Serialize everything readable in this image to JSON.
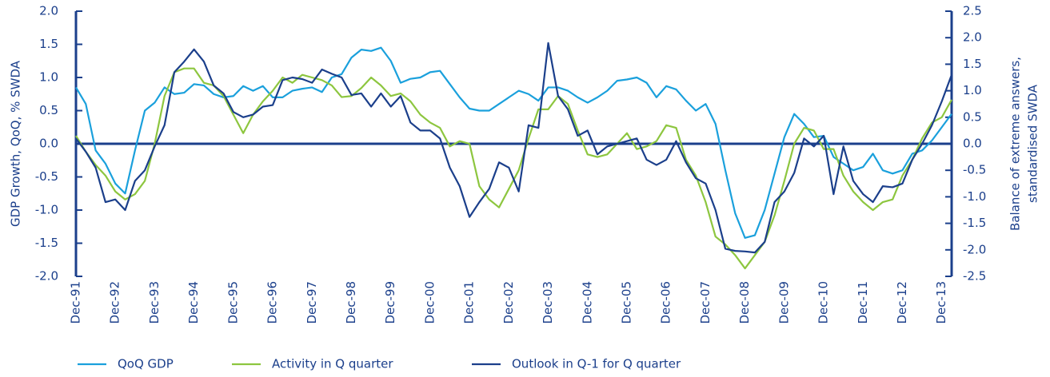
{
  "chart_data": {
    "type": "line",
    "y_label": "GDP Growth, QoQ, % SWDA",
    "y2_label": [
      "Balance of extreme answers,",
      "standardised SWDA"
    ],
    "categories": [
      "Dec-91",
      null,
      null,
      null,
      "Dec-92",
      null,
      null,
      null,
      "Dec-93",
      null,
      null,
      null,
      "Dec-94",
      null,
      null,
      null,
      "Dec-95",
      null,
      null,
      null,
      "Dec-96",
      null,
      null,
      null,
      "Dec-97",
      null,
      null,
      null,
      "Dec-98",
      null,
      null,
      null,
      "Dec-99",
      null,
      null,
      null,
      "Dec-00",
      null,
      null,
      null,
      "Dec-01",
      null,
      null,
      null,
      "Dec-02",
      null,
      null,
      null,
      "Dec-03",
      null,
      null,
      null,
      "Dec-04",
      null,
      null,
      null,
      "Dec-05",
      null,
      null,
      null,
      "Dec-06",
      null,
      null,
      null,
      "Dec-07",
      null,
      null,
      null,
      "Dec-08",
      null,
      null,
      null,
      "Dec-09",
      null,
      null,
      null,
      "Dec-10",
      null,
      null,
      null,
      "Dec-11",
      null,
      null,
      null,
      "Dec-12",
      null,
      null,
      null,
      "Dec-13",
      null
    ],
    "series": [
      {
        "name": "QoQ GDP",
        "color": "#1aa0dc",
        "values": [
          0.85,
          0.6,
          -0.1,
          -0.3,
          -0.6,
          -0.75,
          -0.1,
          0.5,
          0.62,
          0.85,
          0.75,
          0.77,
          0.9,
          0.88,
          0.75,
          0.7,
          0.72,
          0.87,
          0.8,
          0.87,
          0.7,
          0.7,
          0.8,
          0.83,
          0.85,
          0.78,
          1.0,
          1.05,
          1.3,
          1.42,
          1.4,
          1.45,
          1.25,
          0.92,
          0.98,
          1.0,
          1.08,
          1.1,
          0.9,
          0.7,
          0.53,
          0.5,
          0.5,
          0.6,
          0.7,
          0.8,
          0.75,
          0.65,
          0.85,
          0.85,
          0.8,
          0.7,
          0.62,
          0.7,
          0.8,
          0.95,
          0.97,
          1.0,
          0.92,
          0.7,
          0.87,
          0.82,
          0.65,
          0.5,
          0.6,
          0.3,
          -0.4,
          -1.05,
          -1.42,
          -1.38,
          -1.0,
          -0.45,
          0.1,
          0.45,
          0.3,
          0.1,
          0.12,
          -0.2,
          -0.3,
          -0.4,
          -0.35,
          -0.15,
          -0.4,
          -0.45,
          -0.4,
          -0.15,
          -0.1,
          0.05,
          0.25,
          0.45
        ]
      },
      {
        "name": "Activity in Q quarter",
        "color": "#8dc63f",
        "axis": "y2",
        "values": [
          0.15,
          -0.15,
          -0.4,
          -0.6,
          -0.9,
          -1.05,
          -0.95,
          -0.7,
          0.0,
          0.9,
          1.35,
          1.42,
          1.42,
          1.15,
          1.1,
          0.9,
          0.55,
          0.2,
          0.55,
          0.8,
          1.0,
          1.25,
          1.15,
          1.3,
          1.25,
          1.2,
          1.1,
          0.88,
          0.9,
          1.05,
          1.25,
          1.1,
          0.9,
          0.95,
          0.8,
          0.55,
          0.4,
          0.3,
          -0.05,
          0.05,
          0.0,
          -0.8,
          -1.05,
          -1.2,
          -0.85,
          -0.5,
          0.1,
          0.65,
          0.65,
          0.9,
          0.75,
          0.25,
          -0.2,
          -0.25,
          -0.2,
          0.0,
          0.2,
          -0.1,
          -0.05,
          0.05,
          0.35,
          0.3,
          -0.3,
          -0.6,
          -1.1,
          -1.75,
          -1.9,
          -2.1,
          -2.35,
          -2.1,
          -1.85,
          -1.35,
          -0.7,
          0.0,
          0.3,
          0.25,
          -0.1,
          -0.1,
          -0.6,
          -0.9,
          -1.1,
          -1.25,
          -1.1,
          -1.05,
          -0.6,
          -0.3,
          0.1,
          0.4,
          0.5,
          0.83
        ]
      },
      {
        "name": "Outlook in Q-1 for Q quarter",
        "color": "#1b3f8b",
        "axis": "y2",
        "values": [
          0.1,
          -0.15,
          -0.45,
          -1.1,
          -1.05,
          -1.25,
          -0.7,
          -0.5,
          -0.05,
          0.35,
          1.35,
          1.55,
          1.78,
          1.55,
          1.1,
          0.95,
          0.6,
          0.5,
          0.55,
          0.7,
          0.73,
          1.2,
          1.25,
          1.22,
          1.15,
          1.4,
          1.32,
          1.25,
          0.92,
          0.95,
          0.7,
          0.95,
          0.7,
          0.9,
          0.4,
          0.25,
          0.25,
          0.1,
          -0.45,
          -0.8,
          -1.38,
          -1.1,
          -0.85,
          -0.35,
          -0.45,
          -0.9,
          0.35,
          0.3,
          1.9,
          0.9,
          0.65,
          0.15,
          0.25,
          -0.2,
          -0.05,
          0.0,
          0.05,
          0.1,
          -0.3,
          -0.4,
          -0.3,
          0.05,
          -0.35,
          -0.65,
          -0.75,
          -1.25,
          -1.98,
          -2.02,
          -2.03,
          -2.05,
          -1.85,
          -1.1,
          -0.9,
          -0.55,
          0.1,
          -0.05,
          0.15,
          -0.95,
          -0.05,
          -0.7,
          -0.95,
          -1.1,
          -0.8,
          -0.82,
          -0.75,
          -0.3,
          0.0,
          0.35,
          0.8,
          1.3
        ]
      }
    ],
    "ylim": [
      -2,
      2
    ],
    "yticks": [
      {
        "value": -2,
        "label": "-2.0"
      },
      -1.5,
      {
        "value": -1,
        "label": "-1.0"
      },
      -0.5,
      {
        "value": 0,
        "label": "0.0"
      },
      0.5,
      {
        "value": 1,
        "label": "1.0"
      },
      1.5,
      {
        "value": 2,
        "label": "2.0"
      }
    ],
    "y2lim": [
      -2.5,
      2.5
    ],
    "y2ticks": [
      -2.5,
      {
        "value": -2,
        "label": "-2.0"
      },
      -1.5,
      {
        "value": -1,
        "label": "-1.0"
      },
      -0.5,
      {
        "value": 0,
        "label": "0.0"
      },
      0.5,
      {
        "value": 1,
        "label": "1.0"
      },
      1.5,
      {
        "value": 2,
        "label": "2.0"
      },
      2.5
    ],
    "axis_color": "#1b3f8b",
    "legend": "bottom"
  }
}
